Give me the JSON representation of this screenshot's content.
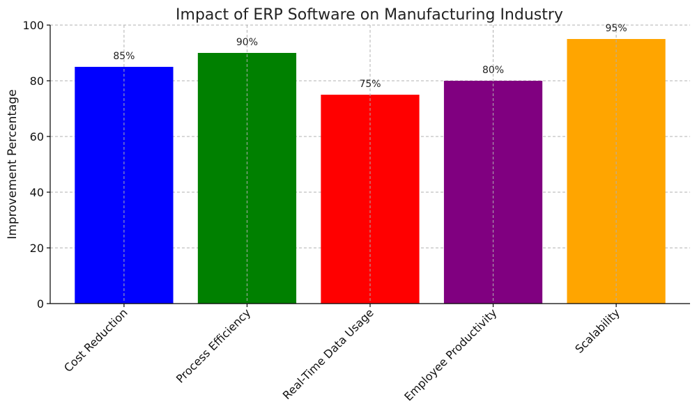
{
  "chart_data": {
    "type": "bar",
    "title": "Impact of ERP Software on Manufacturing Industry",
    "xlabel": "",
    "ylabel": "Improvement Percentage",
    "categories": [
      "Cost Reduction",
      "Process Efficiency",
      "Real-Time Data Usage",
      "Employee Productivity",
      "Scalability"
    ],
    "values": [
      85,
      90,
      75,
      80,
      95
    ],
    "data_labels": [
      "85%",
      "90%",
      "75%",
      "80%",
      "95%"
    ],
    "colors": [
      "#0000ff",
      "#008000",
      "#ff0000",
      "#800080",
      "#ffa500"
    ],
    "ylim": [
      0,
      100
    ],
    "yticks": [
      0,
      20,
      40,
      60,
      80,
      100
    ],
    "grid": true,
    "legend": "none"
  }
}
